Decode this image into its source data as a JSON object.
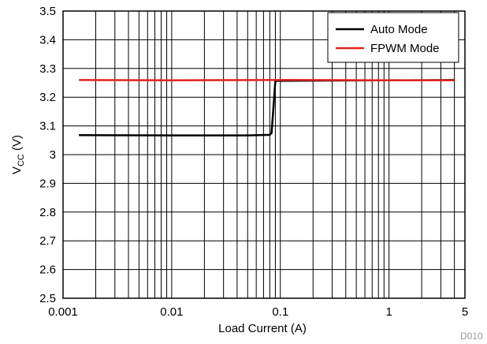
{
  "chart_data": {
    "type": "line",
    "xlabel": "Load Current (A)",
    "ylabel": {
      "main": "V",
      "sub": "CC",
      "unit": " (V)"
    },
    "x_scale": "log",
    "xlim": [
      0.001,
      5
    ],
    "ylim": [
      2.5,
      3.5
    ],
    "x_ticks": [
      {
        "value": 0.001,
        "label": "0.001"
      },
      {
        "value": 0.01,
        "label": "0.01"
      },
      {
        "value": 0.1,
        "label": "0.1"
      },
      {
        "value": 1,
        "label": "1"
      },
      {
        "value": 5,
        "label": "5"
      }
    ],
    "y_ticks": [
      {
        "value": 2.5,
        "label": "2.5"
      },
      {
        "value": 2.6,
        "label": "2.6"
      },
      {
        "value": 2.7,
        "label": "2.7"
      },
      {
        "value": 2.8,
        "label": "2.8"
      },
      {
        "value": 2.9,
        "label": "2.9"
      },
      {
        "value": 3.0,
        "label": "3"
      },
      {
        "value": 3.1,
        "label": "3.1"
      },
      {
        "value": 3.2,
        "label": "3.2"
      },
      {
        "value": 3.3,
        "label": "3.3"
      },
      {
        "value": 3.4,
        "label": "3.4"
      },
      {
        "value": 3.5,
        "label": "3.5"
      }
    ],
    "grid": true,
    "legend_position": "top-right",
    "series": [
      {
        "name": "Auto Mode",
        "color": "#000000",
        "points": [
          [
            0.0014,
            3.068
          ],
          [
            0.01,
            3.067
          ],
          [
            0.05,
            3.067
          ],
          [
            0.08,
            3.069
          ],
          [
            0.083,
            3.075
          ],
          [
            0.087,
            3.18
          ],
          [
            0.09,
            3.257
          ],
          [
            4.0,
            3.26
          ]
        ]
      },
      {
        "name": "FPWM Mode",
        "color": "#e2231a",
        "points": [
          [
            0.0014,
            3.26
          ],
          [
            0.01,
            3.259
          ],
          [
            0.1,
            3.26
          ],
          [
            1.0,
            3.259
          ],
          [
            4.0,
            3.259
          ]
        ]
      }
    ],
    "figure_id": "D010"
  }
}
